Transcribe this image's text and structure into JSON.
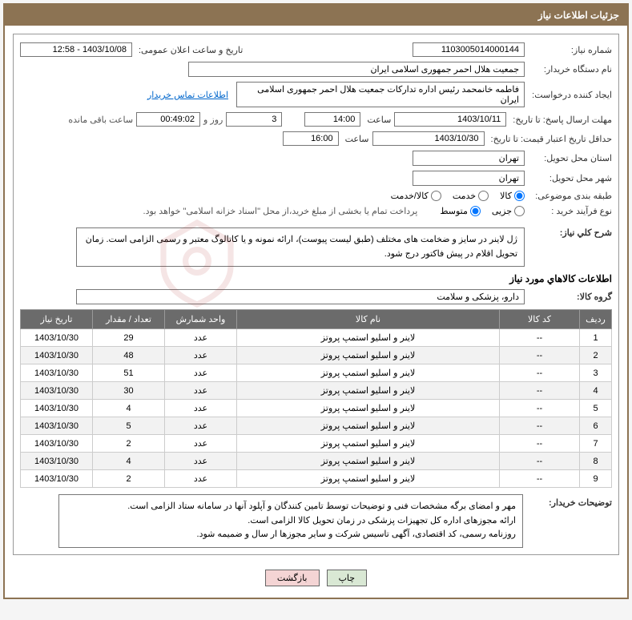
{
  "header": {
    "title": "جزئیات اطلاعات نیاز"
  },
  "fields": {
    "need_no_label": "شماره نیاز:",
    "need_no": "1103005014000144",
    "announce_label": "تاریخ و ساعت اعلان عمومی:",
    "announce_value": "1403/10/08 - 12:58",
    "buyer_org_label": "نام دستگاه خریدار:",
    "buyer_org": "جمعیت هلال احمر جمهوری اسلامی ایران",
    "requester_label": "ایجاد کننده درخواست:",
    "requester": "فاطمه خانمحمد رئیس اداره تدارکات  جمعیت هلال احمر جمهوری اسلامی ایران",
    "contact_link": "اطلاعات تماس خریدار",
    "deadline_label": "مهلت ارسال پاسخ: تا تاریخ:",
    "deadline_date": "1403/10/11",
    "time_label": "ساعت",
    "deadline_time": "14:00",
    "days_field": "3",
    "days_and": "روز و",
    "countdown": "00:49:02",
    "remaining": "ساعت باقی مانده",
    "validity_label": "حداقل تاریخ اعتبار قیمت: تا تاریخ:",
    "validity_date": "1403/10/30",
    "validity_time": "16:00",
    "province_label": "استان محل تحویل:",
    "province": "تهران",
    "city_label": "شهر محل تحویل:",
    "city": "تهران",
    "category_label": "طبقه بندی موضوعی:",
    "cat_goods": "کالا",
    "cat_service": "خدمت",
    "cat_both": "کالا/خدمت",
    "process_label": "نوع فرآیند خرید :",
    "proc_small": "جزیی",
    "proc_medium": "متوسط",
    "treasury_note": "پرداخت تمام یا بخشی از مبلغ خرید،از محل \"اسناد خزانه اسلامی\" خواهد بود.",
    "desc_label": "شرح کلي نياز:",
    "desc_text": "ژل لاینر در سایز و ضخامت های مختلف (طبق لیست پیوست)، ارائه نمونه و یا کاتالوگ معتبر و رسمی الزامی است. زمان تحویل اقلام در پیش فاکتور درج شود.",
    "items_title": "اطلاعات کالاهاي مورد نياز",
    "group_label": "گروه کالا:",
    "group_value": "دارو، پزشکی و سلامت",
    "buyer_notes_label": "توضیحات خریدار:",
    "buyer_notes_text": "مهر و امضای برگه مشخصات فنی و توضیحات توسط تامین کنندگان و آپلود آنها در سامانه ستاد الزامی است.\nارائه مجوزهای اداره کل تجهیزات پزشکی در زمان تحویل کالا الزامی است.\nروزنامه رسمی، کد اقتصادی، آگهی تاسیس شرکت و سایر مجوزها ار سال و ضمیمه شود."
  },
  "table": {
    "headers": [
      "ردیف",
      "کد کالا",
      "نام کالا",
      "واحد شمارش",
      "تعداد / مقدار",
      "تاریخ نیاز"
    ],
    "col_widths": [
      "40px",
      "100px",
      "auto",
      "90px",
      "90px",
      "90px"
    ],
    "rows": [
      [
        "1",
        "--",
        "لاینر و اسلیو استمپ پروتز",
        "عدد",
        "29",
        "1403/10/30"
      ],
      [
        "2",
        "--",
        "لاینر و اسلیو استمپ پروتز",
        "عدد",
        "48",
        "1403/10/30"
      ],
      [
        "3",
        "--",
        "لاینر و اسلیو استمپ پروتز",
        "عدد",
        "51",
        "1403/10/30"
      ],
      [
        "4",
        "--",
        "لاینر و اسلیو استمپ پروتز",
        "عدد",
        "30",
        "1403/10/30"
      ],
      [
        "5",
        "--",
        "لاینر و اسلیو استمپ پروتز",
        "عدد",
        "4",
        "1403/10/30"
      ],
      [
        "6",
        "--",
        "لاینر و اسلیو استمپ پروتز",
        "عدد",
        "5",
        "1403/10/30"
      ],
      [
        "7",
        "--",
        "لاینر و اسلیو استمپ پروتز",
        "عدد",
        "2",
        "1403/10/30"
      ],
      [
        "8",
        "--",
        "لاینر و اسلیو استمپ پروتز",
        "عدد",
        "4",
        "1403/10/30"
      ],
      [
        "9",
        "--",
        "لاینر و اسلیو استمپ پروتز",
        "عدد",
        "2",
        "1403/10/30"
      ]
    ]
  },
  "buttons": {
    "print": "چاپ",
    "back": "بازگشت"
  },
  "colors": {
    "header_bg": "#8c7353",
    "th_bg": "#6b6b6b",
    "link": "#0066cc"
  }
}
